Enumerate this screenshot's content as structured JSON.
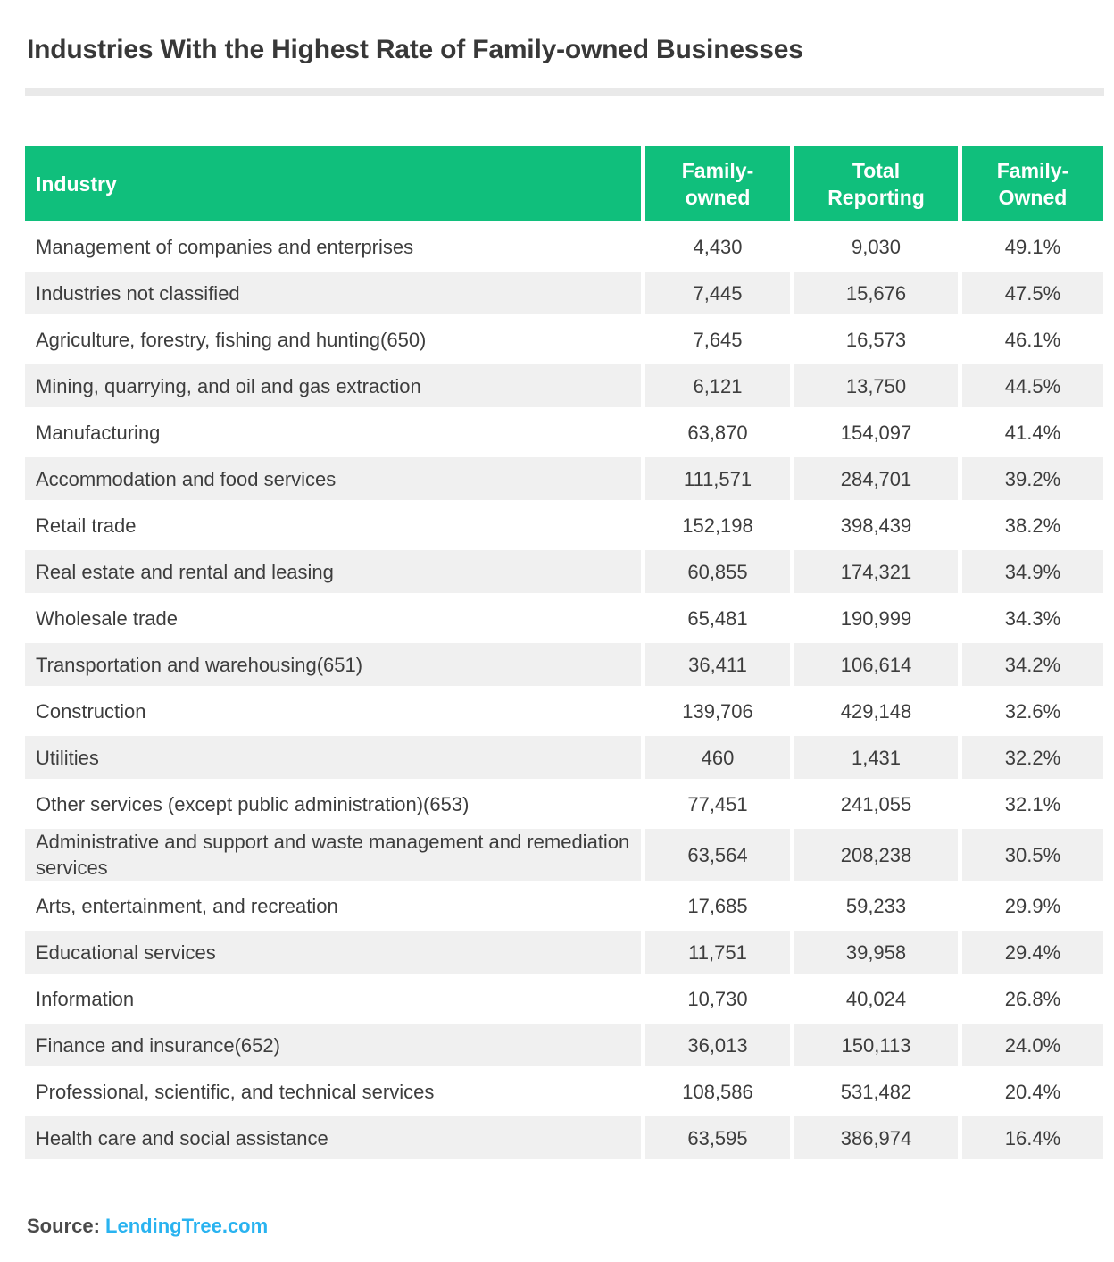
{
  "page": {
    "title": "Industries With the Highest Rate of Family-owned Businesses",
    "source_label": "Source: ",
    "source_link": "LendingTree.com"
  },
  "colors": {
    "header_green": "#10bf7c",
    "row_gray": "#f0f0f0",
    "link_blue": "#29b3f0",
    "text_dark": "#3d3d3d"
  },
  "chart_data": {
    "type": "table",
    "title": "Industries With the Highest Rate of Family-owned Businesses",
    "columns": [
      "Industry",
      "Family-\nowned",
      "Total\nReporting",
      "Family-\nOwned"
    ],
    "rows": [
      [
        "Management of companies and enterprises",
        "4,430",
        "9,030",
        "49.1%"
      ],
      [
        "Industries not classified",
        "7,445",
        "15,676",
        "47.5%"
      ],
      [
        "Agriculture, forestry, fishing and hunting(650)",
        "7,645",
        "16,573",
        "46.1%"
      ],
      [
        "Mining, quarrying, and oil and gas extraction",
        "6,121",
        "13,750",
        "44.5%"
      ],
      [
        "Manufacturing",
        "63,870",
        "154,097",
        "41.4%"
      ],
      [
        "Accommodation and food services",
        "111,571",
        "284,701",
        "39.2%"
      ],
      [
        "Retail trade",
        "152,198",
        "398,439",
        "38.2%"
      ],
      [
        "Real estate and rental and leasing",
        "60,855",
        "174,321",
        "34.9%"
      ],
      [
        "Wholesale trade",
        "65,481",
        "190,999",
        "34.3%"
      ],
      [
        "Transportation and warehousing(651)",
        "36,411",
        "106,614",
        "34.2%"
      ],
      [
        "Construction",
        "139,706",
        "429,148",
        "32.6%"
      ],
      [
        "Utilities",
        "460",
        "1,431",
        "32.2%"
      ],
      [
        "Other services (except public administration)(653)",
        "77,451",
        "241,055",
        "32.1%"
      ],
      [
        "Administrative and support and waste management and remediation services",
        "63,564",
        "208,238",
        "30.5%"
      ],
      [
        "Arts, entertainment, and recreation",
        "17,685",
        "59,233",
        "29.9%"
      ],
      [
        "Educational services",
        "11,751",
        "39,958",
        "29.4%"
      ],
      [
        "Information",
        "10,730",
        "40,024",
        "26.8%"
      ],
      [
        "Finance and insurance(652)",
        "36,013",
        "150,113",
        "24.0%"
      ],
      [
        "Professional, scientific, and technical services",
        "108,586",
        "531,482",
        "20.4%"
      ],
      [
        "Health care and social assistance",
        "63,595",
        "386,974",
        "16.4%"
      ]
    ]
  }
}
